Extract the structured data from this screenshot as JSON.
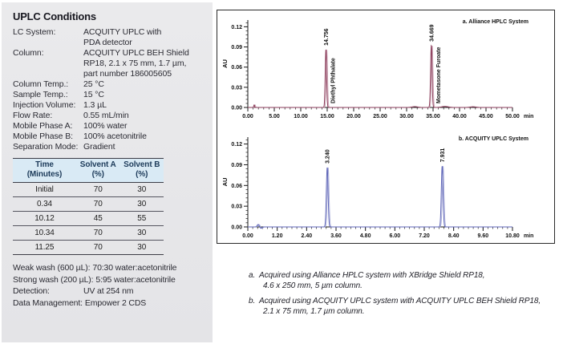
{
  "panel": {
    "title": "UPLC Conditions",
    "rows": [
      {
        "label": "LC System:",
        "value": [
          "ACQUITY UPLC with",
          "PDA detector"
        ]
      },
      {
        "label": "Column:",
        "value": [
          "ACQUITY UPLC BEH Shield",
          "RP18, 2.1 x 75 mm, 1.7 µm,",
          "part number 186005605"
        ]
      },
      {
        "label": "Column Temp.:",
        "value": [
          "25 °C"
        ]
      },
      {
        "label": "Sample Temp.:",
        "value": [
          "15 °C"
        ]
      },
      {
        "label": "Injection Volume:",
        "value": [
          "1.3 µL"
        ]
      },
      {
        "label": "Flow Rate:",
        "value": [
          "0.55 mL/min"
        ]
      },
      {
        "label": "Mobile Phase A:",
        "value": [
          "100% water"
        ]
      },
      {
        "label": "Mobile Phase B:",
        "value": [
          "100% acetonitrile"
        ]
      },
      {
        "label": "Separation Mode:",
        "value": [
          "Gradient"
        ]
      }
    ],
    "gradient_table": {
      "headers": [
        [
          "Time",
          "(Minutes)"
        ],
        [
          "Solvent A",
          "(%)"
        ],
        [
          "Solvent B",
          "(%)"
        ]
      ],
      "rows": [
        [
          "Initial",
          "70",
          "30"
        ],
        [
          "0.34",
          "70",
          "30"
        ],
        [
          "10.12",
          "45",
          "55"
        ],
        [
          "10.34",
          "70",
          "30"
        ],
        [
          "11.25",
          "70",
          "30"
        ]
      ]
    },
    "footer_rows": [
      {
        "label": "Weak wash (600 µL):",
        "value": "70:30 water:acetonitrile",
        "aligned": false
      },
      {
        "label": "Strong wash (200 µL):",
        "value": "5:95 water:acetonitrile",
        "aligned": false
      },
      {
        "label": "Detection:",
        "value": "UV at 254 nm",
        "aligned": true
      },
      {
        "label": "Data Management:",
        "value": "Empower 2 CDS",
        "aligned": false
      }
    ]
  },
  "chart_data": [
    {
      "type": "line",
      "title": "a. Alliance HPLC System",
      "ylabel": "AU",
      "x_unit": "min",
      "xlim": [
        0,
        50
      ],
      "xticks": [
        "0.00",
        "5.00",
        "10.00",
        "15.00",
        "20.00",
        "25.00",
        "30.00",
        "35.00",
        "40.00",
        "45.00",
        "50.00"
      ],
      "x_minor_step": 1,
      "ylim": [
        0,
        0.13
      ],
      "yticks": [
        "0.00",
        "0.03",
        "0.06",
        "0.09",
        "0.12"
      ],
      "y_minor_step": 0.006,
      "line_color": "#8a3a58",
      "line_color_light": "#c9a2b2",
      "replicate_offset_min": 0.18,
      "peaks": [
        {
          "rt": 14.756,
          "rt_label": "14.756",
          "compound": "Diethyl Phthalate",
          "height_au": 0.086,
          "sigma_min": 0.13
        },
        {
          "rt": 34.669,
          "rt_label": "34.669",
          "compound": "Mometasone Furoate",
          "height_au": 0.092,
          "sigma_min": 0.14
        }
      ],
      "artifacts": [
        {
          "rt": 1.2,
          "height_au": 0.0038,
          "sigma_min": 0.08
        },
        {
          "rt": 31.5,
          "height_au": 0.0012,
          "sigma_min": 0.5
        },
        {
          "rt": 37.2,
          "height_au": 0.0015,
          "sigma_min": 0.6
        },
        {
          "rt": 42.5,
          "height_au": 0.001,
          "sigma_min": 0.5
        }
      ]
    },
    {
      "type": "line",
      "title": "b. ACQUITY UPLC System",
      "ylabel": "AU",
      "x_unit": "min",
      "xlim": [
        0,
        10.8
      ],
      "xticks": [
        "0.00",
        "1.20",
        "2.40",
        "3.60",
        "4.80",
        "6.00",
        "7.20",
        "8.40",
        "9.60",
        "10.80"
      ],
      "x_minor_step": 0.2,
      "ylim": [
        0,
        0.13
      ],
      "yticks": [
        "0.00",
        "0.03",
        "0.06",
        "0.09",
        "0.12"
      ],
      "y_minor_step": 0.006,
      "line_color": "#5f66b8",
      "line_color_light": "#a8acd8",
      "replicate_offset_min": 0.04,
      "peaks": [
        {
          "rt": 3.24,
          "rt_label": "3.240",
          "compound": "",
          "height_au": 0.086,
          "sigma_min": 0.035
        },
        {
          "rt": 7.931,
          "rt_label": "7.931",
          "compound": "",
          "height_au": 0.088,
          "sigma_min": 0.035
        }
      ],
      "artifacts": [
        {
          "rt": 0.42,
          "height_au": 0.0035,
          "sigma_min": 0.04
        },
        {
          "rt": 0.54,
          "height_au": -0.002,
          "sigma_min": 0.04
        }
      ]
    }
  ],
  "footnotes": [
    {
      "marker": "a.",
      "lines": [
        "Acquired using Alliance HPLC system with XBridge Shield RP18,",
        "4.6 x 250 mm, 5 µm column."
      ]
    },
    {
      "marker": "b.",
      "lines": [
        "Acquired using ACQUITY UPLC system with ACQUITY UPLC BEH Shield RP18,",
        "2.1 x 75 mm, 1.7 µm column."
      ]
    }
  ]
}
